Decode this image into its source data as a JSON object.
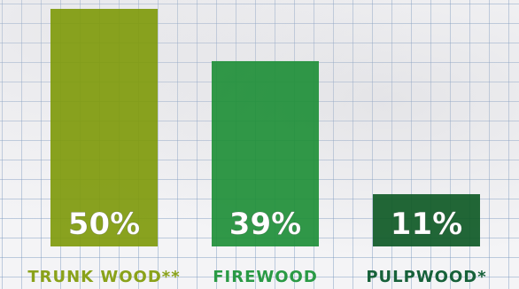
{
  "chart_data": {
    "type": "bar",
    "categories": [
      "TRUNK WOOD**",
      "FIREWOOD",
      "PULPWOOD*"
    ],
    "values": [
      50,
      39,
      11
    ],
    "value_labels": [
      "50%",
      "39%",
      "11%"
    ],
    "ylim": [
      0,
      50
    ],
    "grid": false,
    "colors": [
      "#7f9a0c",
      "#1f8f38",
      "#0f5a26"
    ],
    "label_colors": [
      "#8aa21a",
      "#2a9a45",
      "#17613a"
    ]
  }
}
